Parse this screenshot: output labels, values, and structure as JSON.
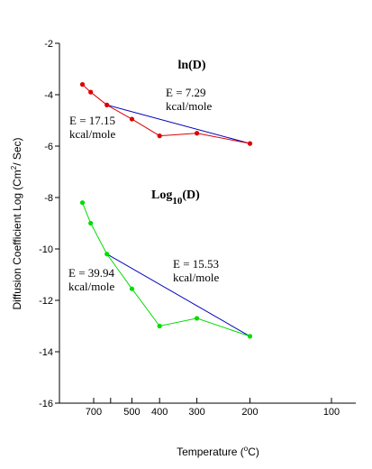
{
  "chart_data": {
    "type": "line",
    "ylabel": "Diffusion Coefficient Log",
    "ylabel_units": "(Cm",
    "ylabel_sup": "2",
    "ylabel_tail": "/ Sec)",
    "xlabel": "Temperature (",
    "xlabel_sup": "o",
    "xlabel_tail": "C)",
    "x_scale": "reciprocal temperature (1/K), increasing to the right",
    "ylim": [
      -16,
      -2
    ],
    "y_ticks": [
      -2,
      -4,
      -6,
      -8,
      -10,
      -12,
      -14,
      -16
    ],
    "x_ticks": [
      700,
      500,
      400,
      300,
      200,
      100
    ],
    "grid": false,
    "groups": [
      {
        "title": "ln(D)",
        "title_main": "ln(D)",
        "title_sub": "",
        "title_tail": "",
        "color": "#dd0000",
        "points": [
          {
            "x": 780,
            "y": -3.6
          },
          {
            "x": 720,
            "y": -3.9
          },
          {
            "x": 620,
            "y": -4.4
          },
          {
            "x": 500,
            "y": -4.95
          },
          {
            "x": 400,
            "y": -5.6
          },
          {
            "x": 300,
            "y": -5.5
          },
          {
            "x": 200,
            "y": -5.9
          }
        ],
        "fit_line": {
          "x": [
            620,
            200
          ],
          "y": [
            -4.4,
            -5.9
          ],
          "color": "#0000bb"
        },
        "annotations": [
          {
            "line1": "E = 17.15",
            "line2": "kcal/mole"
          },
          {
            "line1": "E = 7.29",
            "line2": "kcal/mole"
          }
        ]
      },
      {
        "title": "Log10(D)",
        "title_main": "Log",
        "title_sub": "10",
        "title_tail": "(D)",
        "color": "#00dd00",
        "points": [
          {
            "x": 780,
            "y": -8.2
          },
          {
            "x": 720,
            "y": -9.0
          },
          {
            "x": 620,
            "y": -10.2
          },
          {
            "x": 500,
            "y": -11.55
          },
          {
            "x": 400,
            "y": -13.0
          },
          {
            "x": 300,
            "y": -12.7
          },
          {
            "x": 200,
            "y": -13.4
          }
        ],
        "fit_line": {
          "x": [
            620,
            200
          ],
          "y": [
            -10.2,
            -13.4
          ],
          "color": "#0000bb"
        },
        "annotations": [
          {
            "line1": "E = 39.94",
            "line2": "kcal/mole"
          },
          {
            "line1": "E = 15.53",
            "line2": "kcal/mole"
          }
        ]
      }
    ]
  }
}
